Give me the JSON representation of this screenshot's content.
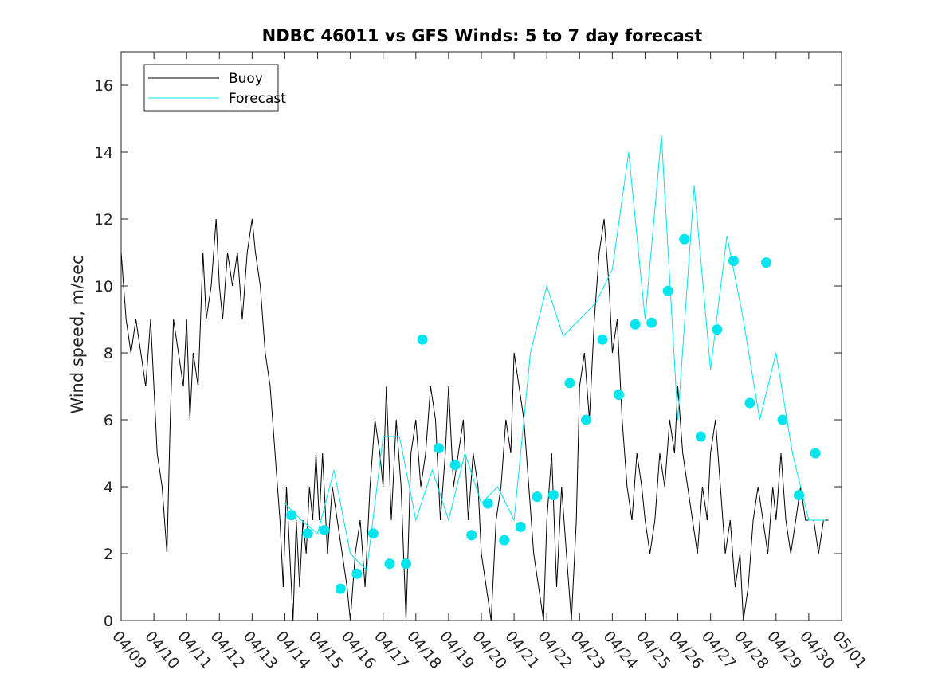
{
  "chart_data": {
    "type": "line",
    "title": "NDBC 46011 vs GFS Winds: 5 to 7 day forecast",
    "ylabel": "Wind speed, m/sec",
    "xlabel": "",
    "ylim": [
      0,
      17
    ],
    "yticks": [
      0,
      2,
      4,
      6,
      8,
      10,
      12,
      14,
      16
    ],
    "xlim": [
      "04/09",
      "05/01"
    ],
    "xticks": [
      "04/09",
      "04/10",
      "04/11",
      "04/12",
      "04/13",
      "04/14",
      "04/15",
      "04/16",
      "04/17",
      "04/18",
      "04/19",
      "04/20",
      "04/21",
      "04/22",
      "04/23",
      "04/24",
      "04/25",
      "04/26",
      "04/27",
      "04/28",
      "04/29",
      "04/30",
      "05/01"
    ],
    "legend_position": "top-left",
    "grid": false,
    "colors": {
      "buoy": "#000000",
      "forecast": "#00e5ee",
      "markers": "#00e5ee"
    },
    "series": [
      {
        "name": "Buoy",
        "x_day_offset": [
          0,
          0.15,
          0.3,
          0.45,
          0.6,
          0.75,
          0.9,
          1.0,
          1.1,
          1.25,
          1.4,
          1.5,
          1.6,
          1.75,
          1.9,
          2.0,
          2.1,
          2.2,
          2.35,
          2.5,
          2.6,
          2.75,
          2.9,
          3.0,
          3.1,
          3.25,
          3.4,
          3.55,
          3.7,
          3.85,
          4.0,
          4.1,
          4.25,
          4.4,
          4.55,
          4.7,
          4.85,
          4.95,
          5.05,
          5.15,
          5.25,
          5.35,
          5.45,
          5.55,
          5.65,
          5.75,
          5.85,
          5.95,
          6.05,
          6.15,
          6.3,
          6.45,
          6.6,
          6.75,
          6.9,
          7.0,
          7.15,
          7.3,
          7.45,
          7.6,
          7.75,
          7.9,
          8.0,
          8.1,
          8.25,
          8.4,
          8.55,
          8.7,
          8.85,
          9.0,
          9.15,
          9.3,
          9.45,
          9.6,
          9.75,
          9.9,
          10.0,
          10.15,
          10.3,
          10.45,
          10.6,
          10.75,
          10.9,
          11.0,
          11.15,
          11.3,
          11.45,
          11.6,
          11.75,
          11.9,
          12.0,
          12.15,
          12.3,
          12.45,
          12.6,
          12.75,
          12.9,
          13.0,
          13.15,
          13.3,
          13.45,
          13.6,
          13.75,
          13.9,
          14.0,
          14.15,
          14.3,
          14.45,
          14.6,
          14.75,
          14.9,
          15.0,
          15.15,
          15.3,
          15.45,
          15.6,
          15.75,
          15.9,
          16.0,
          16.15,
          16.3,
          16.45,
          16.6,
          16.75,
          16.9,
          17.0,
          17.15,
          17.3,
          17.45,
          17.6,
          17.75,
          17.9,
          18.0,
          18.15,
          18.3,
          18.45,
          18.6,
          18.75,
          18.9,
          19.0,
          19.15,
          19.3,
          19.45,
          19.6,
          19.75,
          19.9,
          20.0,
          20.15,
          20.3,
          20.45,
          20.6,
          20.75,
          20.9,
          21.0,
          21.15,
          21.3,
          21.45,
          21.6
        ],
        "values": [
          11,
          9,
          8,
          9,
          8,
          7,
          9,
          7,
          5,
          4,
          2,
          6,
          9,
          8,
          7,
          9,
          6,
          8,
          7,
          11,
          9,
          10,
          12,
          10,
          9,
          11,
          10,
          11,
          9,
          11,
          12,
          11,
          10,
          8,
          7,
          5,
          3,
          1,
          4,
          2,
          0,
          3,
          1,
          3,
          2,
          4,
          3,
          5,
          3,
          5,
          2,
          4,
          3,
          2,
          1,
          0,
          2,
          3,
          1,
          4,
          6,
          5,
          4,
          7,
          3,
          6,
          4,
          0,
          5,
          6,
          4,
          5,
          7,
          6,
          3,
          5,
          7,
          4,
          5,
          6,
          3,
          5,
          4,
          2,
          1,
          0,
          3,
          4,
          6,
          5,
          8,
          7,
          6,
          4,
          2,
          1,
          0,
          3,
          5,
          1,
          4,
          2,
          0,
          3,
          7,
          8,
          6,
          9,
          11,
          12,
          10,
          8,
          9,
          6,
          4,
          3,
          5,
          4,
          3,
          2,
          3,
          5,
          4,
          6,
          5,
          7,
          5,
          4,
          3,
          2,
          4,
          3,
          5,
          6,
          4,
          2,
          3,
          1,
          2,
          0,
          1,
          3,
          4,
          3,
          2,
          4,
          3,
          5,
          3,
          2,
          3,
          4,
          3,
          3,
          3,
          2,
          3,
          3,
          3
        ]
      },
      {
        "name": "Forecast",
        "x_day_offset": [
          5.0,
          5.5,
          6.0,
          6.5,
          7.0,
          7.5,
          8.0,
          8.5,
          9.0,
          9.5,
          10.0,
          10.5,
          11.0,
          11.5,
          12.0,
          12.5,
          13.0,
          13.5,
          14.0,
          14.5,
          15.0,
          15.5,
          16.0,
          16.5,
          17.0,
          17.5,
          18.0,
          18.5,
          19.0,
          19.5,
          20.0,
          20.5,
          21.0,
          21.5
        ],
        "values": [
          3.5,
          3.0,
          2.6,
          4.5,
          2.0,
          1.5,
          5.5,
          5.5,
          3.0,
          4.5,
          3.0,
          5.0,
          3.5,
          4.0,
          3.0,
          8.0,
          10.0,
          8.5,
          9.0,
          9.5,
          10.5,
          14.0,
          9.0,
          14.5,
          6.0,
          13.0,
          7.5,
          11.5,
          9.0,
          6.0,
          8.0,
          5.0,
          3.0,
          3.0
        ]
      }
    ],
    "markers": {
      "x_day_offset": [
        5.2,
        5.7,
        6.2,
        6.7,
        7.2,
        7.7,
        8.2,
        8.7,
        9.2,
        9.7,
        10.2,
        10.7,
        11.2,
        11.7,
        12.2,
        12.7,
        13.2,
        13.7,
        14.2,
        14.7,
        15.2,
        15.7,
        16.2,
        16.7,
        17.2,
        17.7,
        18.2,
        18.7,
        19.2,
        19.7,
        20.2,
        20.7,
        21.2
      ],
      "values": [
        3.15,
        2.6,
        2.7,
        0.95,
        1.4,
        2.6,
        1.7,
        1.7,
        8.4,
        5.15,
        4.65,
        2.55,
        3.5,
        2.4,
        2.8,
        3.7,
        3.75,
        7.1,
        6.0,
        8.4,
        6.75,
        8.85,
        8.9,
        9.85,
        11.4,
        5.5,
        8.7,
        10.75,
        6.5,
        10.7,
        6.0,
        3.75,
        5.0
      ]
    }
  }
}
